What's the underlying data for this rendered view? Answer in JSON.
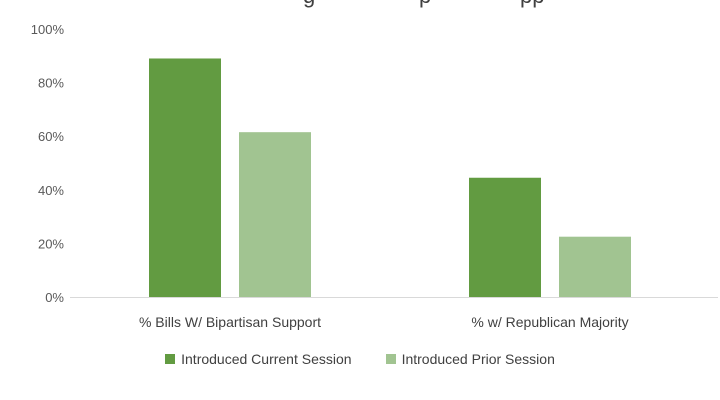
{
  "chart_data": {
    "type": "bar",
    "title_visible_fragments": [
      "g",
      "p",
      "pp"
    ],
    "categories": [
      "% Bills W/ Bipartisan Support",
      "%  w/ Republican Majority"
    ],
    "series": [
      {
        "name": "Introduced Current Session",
        "color": "#629B41",
        "values": [
          0.89,
          0.445
        ]
      },
      {
        "name": "Introduced Prior Session",
        "color": "#A1C491",
        "values": [
          0.615,
          0.225
        ]
      }
    ],
    "yticks": [
      {
        "value": 0,
        "label": "0%"
      },
      {
        "value": 0.2,
        "label": "20%"
      },
      {
        "value": 0.4,
        "label": "40%"
      },
      {
        "value": 0.6,
        "label": "60%"
      },
      {
        "value": 0.8,
        "label": "80%"
      },
      {
        "value": 1.0,
        "label": "100%"
      }
    ],
    "ylim": [
      0,
      1.0
    ],
    "grid": false,
    "legend_position": "bottom"
  }
}
